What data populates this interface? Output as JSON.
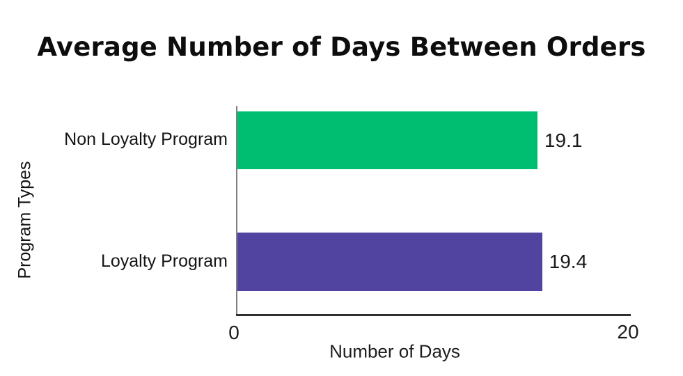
{
  "page": {
    "background": "#ffffff"
  },
  "chart_data": {
    "type": "bar",
    "orientation": "horizontal",
    "title": "Average Number of Days Between Orders",
    "categories": [
      "Non Loyalty Program",
      "Loyalty Program"
    ],
    "values": [
      19.1,
      19.4
    ],
    "value_labels": [
      "19.1",
      "19.4"
    ],
    "bar_colors": [
      "#00BE71",
      "#5143A0"
    ],
    "xlabel": "Number of Days",
    "ylabel": "Program Types",
    "xlim": [
      0,
      20
    ],
    "x_ticks": [
      "0",
      "20"
    ],
    "bar_scale_max": 25,
    "grid": "off",
    "legend": "none",
    "axis_color_x": "#303030",
    "axis_color_y": "#808080",
    "title_color": "#0d0d0d"
  }
}
